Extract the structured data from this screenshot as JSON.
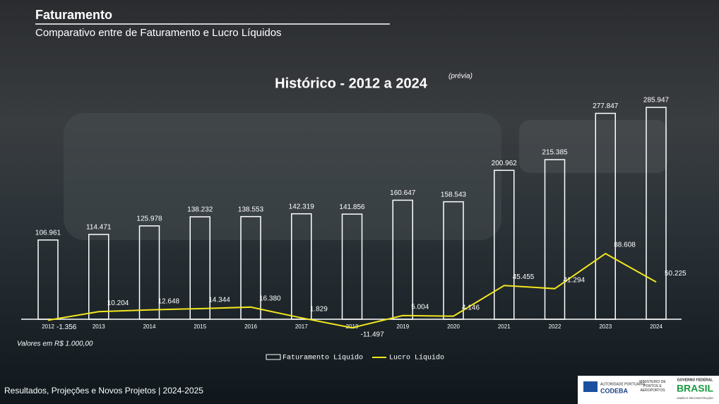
{
  "header": {
    "title": "Faturamento",
    "subtitle": "Comparativo entre de Faturamento e Lucro Líquidos"
  },
  "chart_data": {
    "type": "bar_line",
    "title": "Histórico - 2012 a 2024",
    "title_note": "(prévia)",
    "note": "Valores em R$ 1.000,00",
    "categories": [
      "2012",
      "2013",
      "2014",
      "2015",
      "2016",
      "2017",
      "2018",
      "2019",
      "2020",
      "2021",
      "2022",
      "2023",
      "2024"
    ],
    "series": [
      {
        "name": "Faturamento Líquido",
        "type": "bar",
        "color": "#ffffff",
        "values": [
          106961,
          114471,
          125978,
          138232,
          138553,
          142319,
          141856,
          160647,
          158543,
          200962,
          215385,
          277847,
          285947
        ],
        "value_labels": [
          "106.961",
          "114.471",
          "125.978",
          "138.232",
          "138.553",
          "142.319",
          "141.856",
          "160.647",
          "158.543",
          "200.962",
          "215.385",
          "277.847",
          "285.947"
        ]
      },
      {
        "name": "Lucro Líquido",
        "type": "line",
        "color": "#f2e61e",
        "values": [
          -1356,
          10204,
          12648,
          14344,
          16380,
          1829,
          -11497,
          5004,
          4146,
          45455,
          41294,
          88608,
          50225
        ],
        "value_labels": [
          "-1.356",
          "10.204",
          "12.648",
          "14.344",
          "16.380",
          "1.829",
          "-11.497",
          "5.004",
          "4.146",
          "45.455",
          "41.294",
          "88.608",
          "50.225"
        ]
      }
    ]
  },
  "footer": {
    "text": "Resultados, Projeções e Novos Projetos | 2024-2025",
    "logos": [
      "AUTORIDADE PORTUÁRIA",
      "CODEBA",
      "MINISTÉRIO DE PORTOS E AEROPORTOS",
      "GOVERNO FEDERAL",
      "BRASIL",
      "UNIÃO E RECONSTRUÇÃO"
    ]
  }
}
